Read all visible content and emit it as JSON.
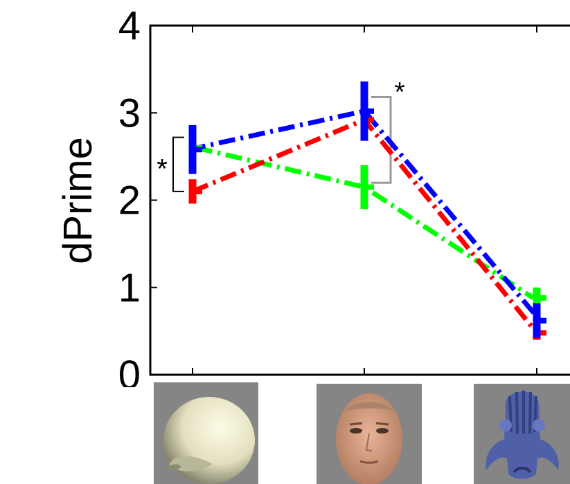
{
  "chart_data": {
    "type": "line",
    "title": "",
    "xlabel": "",
    "ylabel": "dPrime",
    "ylim": [
      0,
      4
    ],
    "yticks": [
      "0",
      "1",
      "2",
      "3",
      "4"
    ],
    "categories": [
      "shell",
      "face",
      "creature"
    ],
    "error_style": "dashed lines with error bars",
    "series": [
      {
        "color": "#0000ff",
        "values": [
          2.58,
          3.02,
          0.62
        ],
        "errors": [
          0.28,
          0.34,
          0.2
        ]
      },
      {
        "color": "#ff0000",
        "values": [
          2.1,
          2.92,
          0.48
        ],
        "errors": [
          0.14,
          0.2,
          0.08
        ]
      },
      {
        "color": "#00ff00",
        "values": [
          2.6,
          2.15,
          0.88
        ],
        "errors": [
          0.12,
          0.25,
          0.12
        ]
      }
    ],
    "annotations": [
      {
        "text": "*",
        "bracket_between": [
          2.1,
          2.72
        ],
        "category": "shell"
      },
      {
        "text": "*",
        "bracket_between": [
          2.2,
          3.18
        ],
        "category": "face"
      }
    ]
  },
  "stimuli": [
    {
      "name": "shell-stimulus-image",
      "background": "#858585"
    },
    {
      "name": "face-stimulus-image",
      "background": "#858585"
    },
    {
      "name": "creature-stimulus-image",
      "background": "#858585"
    }
  ]
}
